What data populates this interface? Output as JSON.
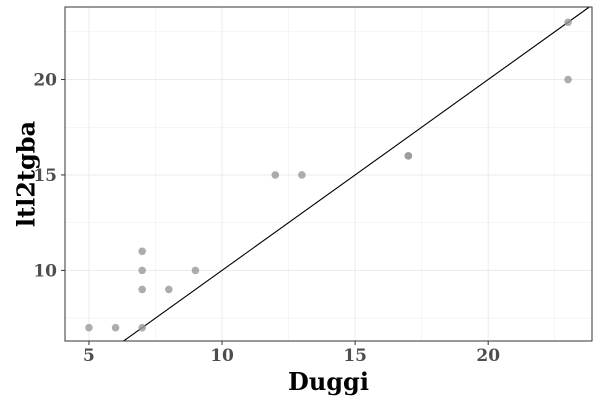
{
  "chart_data": {
    "type": "scatter",
    "xlabel": "Duggi",
    "ylabel": "ltl2tgba",
    "xlim": [
      4.1,
      23.9
    ],
    "ylim": [
      6.3,
      23.8
    ],
    "x_ticks": [
      5,
      10,
      15,
      20
    ],
    "y_ticks": [
      10,
      15,
      20
    ],
    "grid": true,
    "points": [
      {
        "x": 5,
        "y": 7
      },
      {
        "x": 6,
        "y": 7
      },
      {
        "x": 7,
        "y": 7
      },
      {
        "x": 7,
        "y": 9
      },
      {
        "x": 7,
        "y": 10
      },
      {
        "x": 7,
        "y": 11
      },
      {
        "x": 8,
        "y": 9
      },
      {
        "x": 9,
        "y": 10
      },
      {
        "x": 12,
        "y": 15
      },
      {
        "x": 13,
        "y": 15
      },
      {
        "x": 17,
        "y": 16
      },
      {
        "x": 17,
        "y": 16
      },
      {
        "x": 23,
        "y": 20
      },
      {
        "x": 23,
        "y": 23
      }
    ],
    "reference_line": "y = x",
    "colors": {
      "point": "#999999",
      "line": "#000000",
      "grid": "#ebebeb",
      "panel_border": "#333333"
    }
  }
}
